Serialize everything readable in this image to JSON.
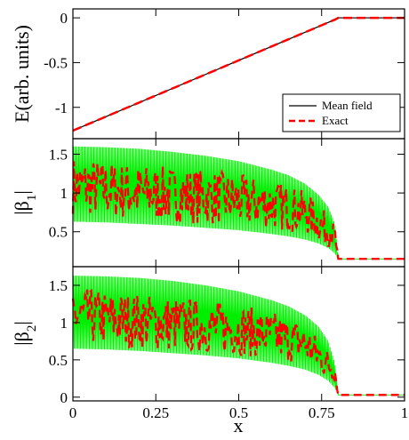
{
  "chart_data": [
    {
      "type": "line",
      "panel": "top",
      "ylabel": "E(arb. units)",
      "xlim": [
        0,
        1
      ],
      "ylim": [
        -1.35,
        0.1
      ],
      "yticks": [
        0,
        -0.5,
        -1
      ],
      "ytick_labels": [
        "0",
        "-0.5",
        "-1"
      ],
      "series": [
        {
          "name": "Mean field",
          "color": "#000000",
          "style": "solid",
          "x": [
            0,
            0.79,
            0.8,
            1
          ],
          "y": [
            -1.26,
            -0.02,
            0,
            0
          ]
        },
        {
          "name": "Exact",
          "color": "#ff0000",
          "style": "dashed",
          "x": [
            0,
            0.79,
            0.8,
            1
          ],
          "y": [
            -1.26,
            -0.02,
            0,
            0
          ]
        }
      ],
      "legend": {
        "position": "bottom-right",
        "entries": [
          "Mean field",
          "Exact"
        ]
      }
    },
    {
      "type": "line",
      "panel": "middle",
      "ylabel": "|β1|",
      "xlim": [
        0,
        1
      ],
      "ylim": [
        0.05,
        1.7
      ],
      "yticks": [
        0.5,
        1,
        1.5
      ],
      "ytick_labels": [
        "0.5",
        "1",
        "1.5"
      ],
      "series": [
        {
          "name": "Mean field",
          "color": "#00ee00",
          "style": "solid",
          "x": [
            0,
            0.1,
            0.2,
            0.3,
            0.4,
            0.5,
            0.6,
            0.65,
            0.7,
            0.74,
            0.77,
            0.79,
            0.8,
            1
          ],
          "upper": [
            1.6,
            1.59,
            1.57,
            1.53,
            1.48,
            1.41,
            1.3,
            1.23,
            1.12,
            0.98,
            0.82,
            0.6,
            0.15,
            0.15
          ],
          "lower": [
            0.63,
            0.62,
            0.6,
            0.58,
            0.55,
            0.52,
            0.47,
            0.44,
            0.4,
            0.35,
            0.29,
            0.22,
            0.15,
            0.15
          ]
        },
        {
          "name": "Exact",
          "color": "#ff0000",
          "style": "dashed",
          "x": [
            0,
            0.1,
            0.2,
            0.3,
            0.4,
            0.5,
            0.6,
            0.7,
            0.79,
            0.8,
            1
          ],
          "y": [
            1.1,
            1.05,
            1.0,
            0.98,
            0.95,
            0.9,
            0.85,
            0.75,
            0.45,
            0.15,
            0.15
          ]
        }
      ]
    },
    {
      "type": "line",
      "panel": "bottom",
      "ylabel": "|β2|",
      "xlabel": "x",
      "xlim": [
        0,
        1
      ],
      "ylim": [
        -0.05,
        1.75
      ],
      "xticks": [
        0,
        0.25,
        0.5,
        0.75,
        1
      ],
      "xtick_labels": [
        "0",
        "0.25",
        "0.5",
        "0.75",
        "1"
      ],
      "yticks": [
        0,
        0.5,
        1,
        1.5
      ],
      "ytick_labels": [
        "0",
        "0.5",
        "1",
        "1.5"
      ],
      "series": [
        {
          "name": "Mean field",
          "color": "#00ee00",
          "style": "solid",
          "x": [
            0,
            0.1,
            0.2,
            0.3,
            0.4,
            0.5,
            0.6,
            0.65,
            0.7,
            0.74,
            0.77,
            0.79,
            0.8,
            1
          ],
          "upper": [
            1.63,
            1.62,
            1.6,
            1.56,
            1.5,
            1.42,
            1.3,
            1.22,
            1.1,
            0.95,
            0.75,
            0.45,
            0.03,
            0.03
          ],
          "lower": [
            0.65,
            0.64,
            0.62,
            0.59,
            0.56,
            0.52,
            0.46,
            0.42,
            0.37,
            0.3,
            0.22,
            0.12,
            0.03,
            0.03
          ]
        },
        {
          "name": "Exact",
          "color": "#ff0000",
          "style": "dashed",
          "x": [
            0,
            0.1,
            0.2,
            0.3,
            0.4,
            0.5,
            0.6,
            0.7,
            0.79,
            0.8,
            1
          ],
          "y": [
            1.1,
            1.05,
            1.02,
            0.98,
            0.95,
            0.9,
            0.83,
            0.72,
            0.35,
            0.03,
            0.03
          ]
        }
      ]
    }
  ]
}
